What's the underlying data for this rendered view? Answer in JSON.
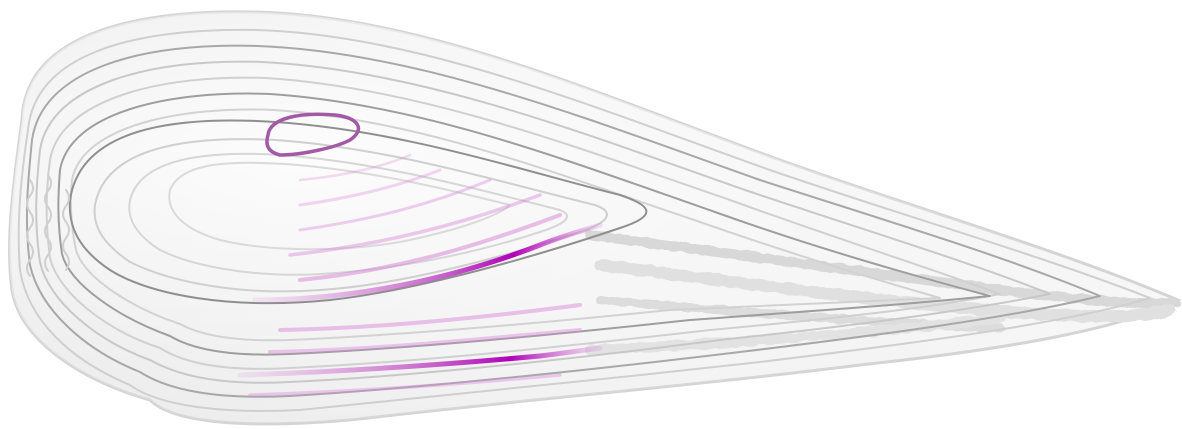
{
  "colors": {
    "background": "#ffffff",
    "shell_fill": "#efefef",
    "line_gray": "#9a9a9a",
    "line_light": "#cdcdcd",
    "accent_magenta": "#b000b8",
    "accent_pink": "#d98ad9"
  },
  "shape": "nested-contour-lines",
  "contour_count": 11
}
